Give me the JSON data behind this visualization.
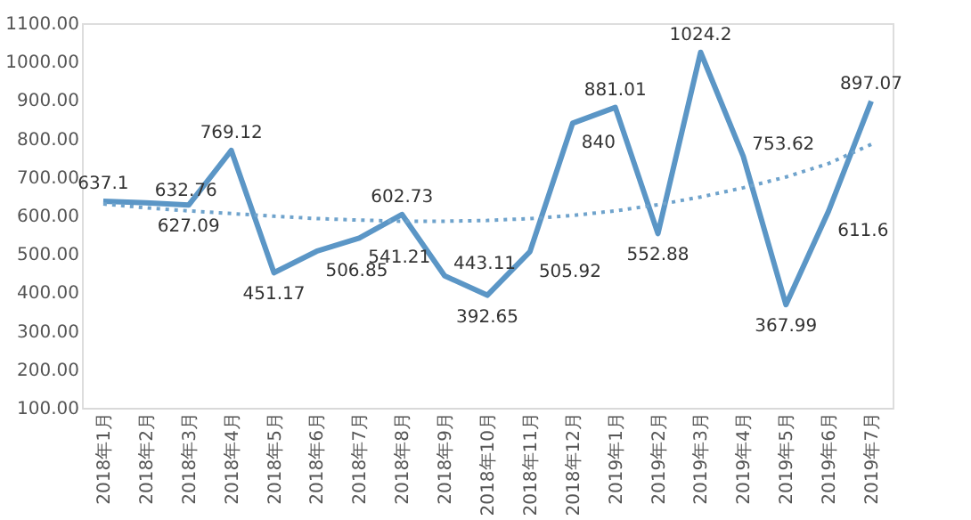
{
  "chart_data": {
    "type": "line",
    "categories": [
      "2018年1月",
      "2018年2月",
      "2018年3月",
      "2018年4月",
      "2018年5月",
      "2018年6月",
      "2018年7月",
      "2018年8月",
      "2018年9月",
      "2018年10月",
      "2018年11月",
      "2018年12月",
      "2019年1月",
      "2019年2月",
      "2019年3月",
      "2019年4月",
      "2019年5月",
      "2019年6月",
      "2019年7月"
    ],
    "series": [
      {
        "color": "#5b96c6",
        "line_style": "solid",
        "data_labels": true,
        "values": [
          637.1,
          632.76,
          627.09,
          769.12,
          451.17,
          506.85,
          541.21,
          602.73,
          443.11,
          392.65,
          505.92,
          840,
          881.01,
          552.88,
          1024.2,
          753.62,
          367.99,
          611.6,
          897.07
        ]
      },
      {
        "color": "#6fa3cc",
        "line_style": "dotted",
        "data_labels": false,
        "values": [
          630,
          620,
          612,
          605,
          598,
          592,
          588,
          585,
          585,
          587,
          592,
          600,
          612,
          628,
          648,
          672,
          700,
          735,
          785
        ]
      }
    ],
    "ylim": [
      100,
      1100
    ],
    "yticks": [
      {
        "value": 100,
        "label": "100.00"
      },
      {
        "value": 200,
        "label": "200.00"
      },
      {
        "value": 300,
        "label": "300.00"
      },
      {
        "value": 400,
        "label": "400.00"
      },
      {
        "value": 500,
        "label": "500.00"
      },
      {
        "value": 600,
        "label": "600.00"
      },
      {
        "value": 700,
        "label": "700.00"
      },
      {
        "value": 800,
        "label": "800.00"
      },
      {
        "value": 900,
        "label": "900.00"
      },
      {
        "value": 1000,
        "label": "1000.00"
      },
      {
        "value": 1100,
        "label": "1100.00"
      }
    ],
    "grid": false,
    "marker": "none"
  }
}
